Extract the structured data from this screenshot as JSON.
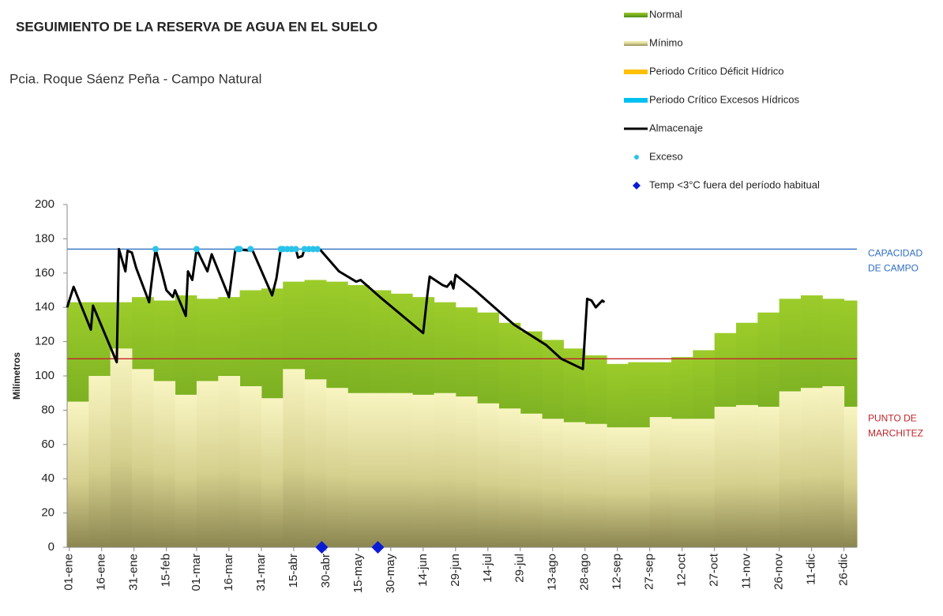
{
  "chart_data": {
    "type": "area",
    "title": "SEGUIMIENTO DE LA RESERVA DE AGUA EN EL SUELO",
    "subtitle": "Pcia. Roque Sáenz Peña - Campo Natural",
    "ylabel": "Milímetros",
    "xlim": [
      0,
      366
    ],
    "ylim": [
      0,
      200
    ],
    "yticks": [
      0,
      20,
      40,
      60,
      80,
      100,
      120,
      140,
      160,
      180,
      200
    ],
    "xticks": [
      {
        "value": 1,
        "label": "01-ene"
      },
      {
        "value": 16,
        "label": "16-ene"
      },
      {
        "value": 31,
        "label": "31-ene"
      },
      {
        "value": 46,
        "label": "15-feb"
      },
      {
        "value": 60,
        "label": "01-mar"
      },
      {
        "value": 75,
        "label": "16-mar"
      },
      {
        "value": 90,
        "label": "31-mar"
      },
      {
        "value": 105,
        "label": "15-abr"
      },
      {
        "value": 120,
        "label": "30-abr"
      },
      {
        "value": 135,
        "label": "15-may"
      },
      {
        "value": 150,
        "label": "30-may"
      },
      {
        "value": 165,
        "label": "14-jun"
      },
      {
        "value": 180,
        "label": "29-jun"
      },
      {
        "value": 195,
        "label": "14-jul"
      },
      {
        "value": 210,
        "label": "29-jul"
      },
      {
        "value": 225,
        "label": "13-ago"
      },
      {
        "value": 240,
        "label": "28-ago"
      },
      {
        "value": 255,
        "label": "12-sep"
      },
      {
        "value": 270,
        "label": "27-sep"
      },
      {
        "value": 285,
        "label": "12-oct"
      },
      {
        "value": 300,
        "label": "27-oct"
      },
      {
        "value": 315,
        "label": "11-nov"
      },
      {
        "value": 330,
        "label": "26-nov"
      },
      {
        "value": 345,
        "label": "11-dic"
      },
      {
        "value": 360,
        "label": "26-dic"
      }
    ],
    "series": [
      {
        "name": "Normal",
        "color": "#6aa51e",
        "kind": "step",
        "x": [
          0,
          10,
          20,
          30,
          40,
          50,
          60,
          70,
          80,
          90,
          100,
          110,
          120,
          130,
          140,
          150,
          160,
          170,
          180,
          190,
          200,
          210,
          220,
          230,
          240,
          250,
          260,
          270,
          280,
          290,
          300,
          310,
          320,
          330,
          340,
          350,
          360
        ],
        "values": [
          143,
          143,
          143,
          146,
          144,
          147,
          145,
          146,
          150,
          151,
          155,
          156,
          155,
          153,
          150,
          148,
          146,
          143,
          140,
          137,
          131,
          126,
          121,
          116,
          112,
          107,
          108,
          108,
          111,
          115,
          125,
          131,
          137,
          145,
          147,
          145,
          144
        ]
      },
      {
        "name": "Mínimo",
        "color": "#e8e49a",
        "kind": "step",
        "x": [
          0,
          10,
          20,
          30,
          40,
          50,
          60,
          70,
          80,
          90,
          100,
          110,
          120,
          130,
          140,
          150,
          160,
          170,
          180,
          190,
          200,
          210,
          220,
          230,
          240,
          250,
          260,
          270,
          280,
          290,
          300,
          310,
          320,
          330,
          340,
          350,
          360
        ],
        "values": [
          85,
          100,
          116,
          104,
          97,
          89,
          97,
          100,
          94,
          87,
          104,
          98,
          93,
          90,
          90,
          90,
          89,
          90,
          88,
          84,
          81,
          78,
          75,
          73,
          72,
          70,
          70,
          76,
          75,
          75,
          82,
          83,
          82,
          91,
          93,
          94,
          82
        ]
      },
      {
        "name": "Periodo Crítico Déficit Hídrico",
        "color": "#ffc000",
        "kind": "band"
      },
      {
        "name": "Periodo Crítico Excesos Hídricos",
        "color": "#00c0f0",
        "kind": "band"
      },
      {
        "name": "Almacenaje",
        "color": "#000000",
        "kind": "line",
        "x": [
          0,
          3,
          11,
          12,
          23,
          24,
          27,
          28,
          30,
          32,
          38,
          41,
          44,
          46,
          49,
          50,
          55,
          56,
          58,
          60,
          65,
          67,
          75,
          78,
          86,
          95,
          97,
          99,
          106,
          107,
          109,
          110,
          117,
          126,
          134,
          136,
          145,
          165,
          167,
          168,
          174,
          176,
          178,
          179,
          180,
          189,
          207,
          222,
          229,
          239,
          241,
          243,
          245,
          248,
          249
        ],
        "values": [
          140,
          152,
          127,
          141,
          108,
          174,
          161,
          173,
          172,
          163,
          143,
          174,
          160,
          150,
          146,
          150,
          135,
          161,
          156,
          174,
          161,
          171,
          146,
          174,
          173,
          147,
          157,
          174,
          174,
          169,
          170,
          174,
          174,
          161,
          155,
          156,
          146,
          125,
          148,
          158,
          153,
          152,
          155,
          151,
          159,
          150,
          130,
          118,
          110,
          104,
          145,
          144,
          140,
          144,
          143
        ]
      },
      {
        "name": "Exceso",
        "color": "#29c3ea",
        "kind": "dots",
        "x": [
          41,
          60,
          79,
          80,
          85,
          99,
          100,
          102,
          104,
          106,
          110,
          112,
          114,
          116
        ],
        "values": [
          174,
          174,
          174,
          174,
          174,
          174,
          174,
          174,
          174,
          174,
          174,
          174,
          174,
          174
        ]
      },
      {
        "name": "Temp <3°C fuera del período habitual",
        "color": "#0a1bd6",
        "kind": "diamond",
        "x": [
          118,
          144
        ],
        "values": [
          0,
          0
        ]
      }
    ],
    "reference_lines": [
      {
        "value": 174,
        "color": "#2f6fbf",
        "label": [
          "CAPACIDAD",
          "DE CAMPO"
        ]
      },
      {
        "value": 110,
        "color": "#c0252a",
        "label": [
          "PUNTO DE",
          "MARCHITEZ"
        ]
      }
    ]
  }
}
